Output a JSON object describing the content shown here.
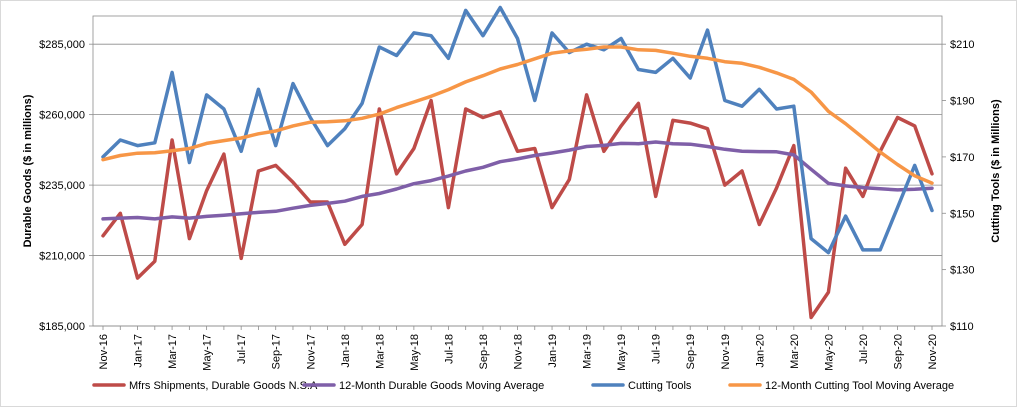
{
  "chart_data": {
    "type": "line",
    "title": "",
    "ylabel_left": "Durable Goods ($ in millions)",
    "ylabel_right": "Cutting Tools ($ in Millions)",
    "ylim_left": [
      185000,
      295000
    ],
    "ylim_right": [
      110,
      220
    ],
    "yticks_left": [
      "$185,000",
      "$210,000",
      "$235,000",
      "$260,000",
      "$285,000"
    ],
    "yticks_left_values": [
      185000,
      210000,
      235000,
      260000,
      285000
    ],
    "yticks_right": [
      "$110",
      "$130",
      "$150",
      "$170",
      "$190",
      "$210"
    ],
    "yticks_right_values": [
      110,
      130,
      150,
      170,
      190,
      210
    ],
    "grid": true,
    "legend_position": "bottom",
    "x": [
      "Nov-16",
      "Dec-16",
      "Jan-17",
      "Feb-17",
      "Mar-17",
      "Apr-17",
      "May-17",
      "Jun-17",
      "Jul-17",
      "Aug-17",
      "Sep-17",
      "Oct-17",
      "Nov-17",
      "Dec-17",
      "Jan-18",
      "Feb-18",
      "Mar-18",
      "Apr-18",
      "May-18",
      "Jun-18",
      "Jul-18",
      "Aug-18",
      "Sep-18",
      "Oct-18",
      "Nov-18",
      "Dec-18",
      "Jan-19",
      "Feb-19",
      "Mar-19",
      "Apr-19",
      "May-19",
      "Jun-19",
      "Jul-19",
      "Aug-19",
      "Sep-19",
      "Oct-19",
      "Nov-19",
      "Dec-19",
      "Jan-20",
      "Feb-20",
      "Mar-20",
      "Apr-20",
      "May-20",
      "Jun-20",
      "Jul-20",
      "Aug-20",
      "Sep-20",
      "Oct-20",
      "Nov-20"
    ],
    "xtick_labels": [
      "Nov-16",
      "Jan-17",
      "Mar-17",
      "May-17",
      "Jul-17",
      "Sep-17",
      "Nov-17",
      "Jan-18",
      "Mar-18",
      "May-18",
      "Jul-18",
      "Sep-18",
      "Nov-18",
      "Jan-19",
      "Mar-19",
      "May-19",
      "Jul-19",
      "Sep-19",
      "Nov-19",
      "Jan-20",
      "Mar-20",
      "May-20",
      "Jul-20",
      "Sep-20",
      "Nov-20"
    ],
    "series": [
      {
        "name": "Mfrs Shipments, Durable Goods N.S.A",
        "axis": "left",
        "color": "#be4b48",
        "values": [
          217000,
          225000,
          202000,
          208000,
          251000,
          216000,
          233000,
          246000,
          209000,
          240000,
          242000,
          236000,
          229000,
          229000,
          214000,
          221000,
          262000,
          239000,
          248000,
          265000,
          227000,
          262000,
          259000,
          261000,
          247000,
          248000,
          227000,
          237000,
          267000,
          247000,
          256000,
          264000,
          231000,
          258000,
          257000,
          255000,
          235000,
          240000,
          221000,
          234000,
          249000,
          188000,
          197000,
          241000,
          231000,
          247000,
          259000,
          256000,
          239000
        ]
      },
      {
        "name": "12-Month Durable Goods Moving Average",
        "axis": "left",
        "color": "#7f5fa8",
        "values": [
          223000,
          223300,
          223500,
          223000,
          223700,
          223300,
          223900,
          224300,
          224800,
          225300,
          225700,
          226800,
          227800,
          228500,
          229300,
          231000,
          232000,
          233600,
          235500,
          236600,
          238200,
          240000,
          241300,
          243300,
          244300,
          245500,
          246400,
          247400,
          248700,
          249100,
          249800,
          249700,
          250300,
          249700,
          249500,
          248700,
          247700,
          247000,
          246900,
          246800,
          245700,
          240600,
          235600,
          234700,
          234100,
          233700,
          233300,
          233500,
          233900
        ]
      },
      {
        "name": "Cutting Tools",
        "axis": "right",
        "color": "#4f81bd",
        "values": [
          170,
          176,
          174,
          175,
          200,
          168,
          192,
          187,
          172,
          194,
          174,
          196,
          184,
          174,
          180,
          189,
          209,
          206,
          214,
          213,
          205,
          222,
          213,
          223,
          212,
          190,
          214,
          207,
          210,
          208,
          212,
          201,
          200,
          205,
          198,
          215,
          190,
          188,
          194,
          187,
          188,
          141,
          136,
          149,
          137,
          137,
          152,
          167,
          151
        ]
      },
      {
        "name": "12-Month Cutting Tool Moving Average",
        "axis": "right",
        "color": "#f79646",
        "values": [
          169,
          170.5,
          171.3,
          171.5,
          172.2,
          173,
          174.8,
          175.8,
          176.7,
          178.2,
          179.2,
          181,
          182.3,
          182.5,
          182.8,
          183.7,
          185.2,
          187.5,
          189.5,
          191.5,
          193.9,
          196.6,
          198.8,
          201.2,
          202.8,
          204.8,
          206.8,
          207.6,
          208.2,
          209,
          209,
          208,
          207.8,
          206.8,
          205.7,
          205,
          203.8,
          203.2,
          201.8,
          199.8,
          197.5,
          193,
          186.2,
          181.8,
          176.8,
          171.7,
          167.3,
          163.3,
          160.7
        ]
      }
    ]
  }
}
